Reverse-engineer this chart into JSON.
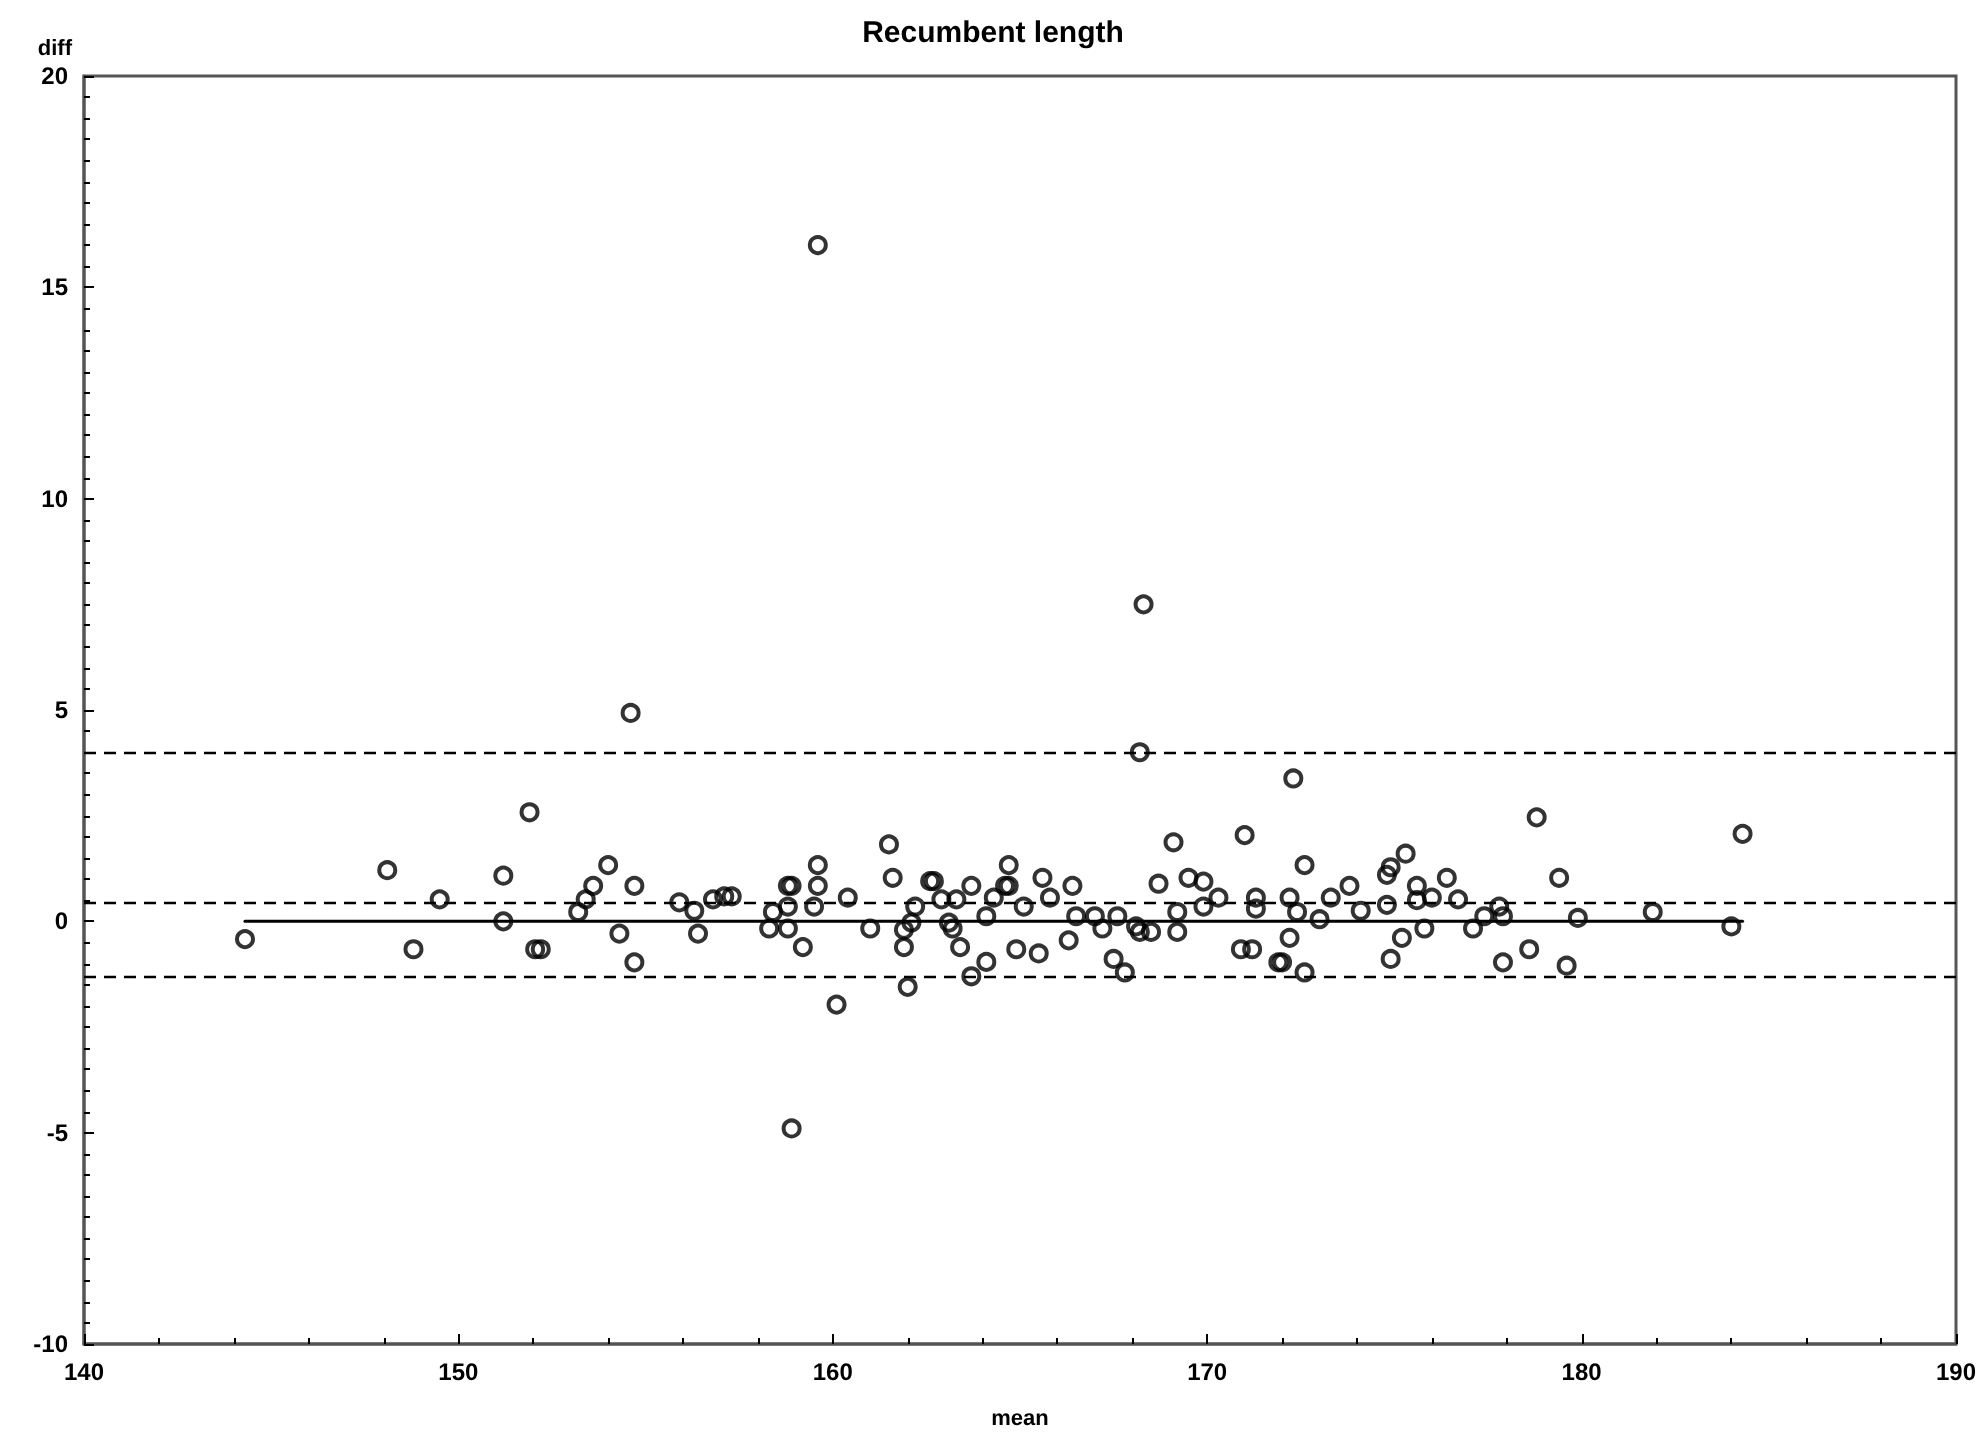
{
  "chart_data": {
    "type": "scatter",
    "title": "Recumbent length",
    "xlabel": "mean",
    "ylabel": "diff",
    "xlim": [
      140,
      190
    ],
    "xticks": [
      140,
      150,
      160,
      170,
      180,
      190
    ],
    "ylim": [
      -10,
      20
    ],
    "yticks": [
      -10,
      -5,
      0,
      5,
      10,
      15,
      20
    ],
    "grid": false,
    "marker": "circle",
    "series": [
      {
        "color": "#000000",
        "x": [
          144.3,
          148.1,
          148.8,
          149.5,
          151.2,
          151.2,
          151.9,
          152.05,
          152.2,
          154.6,
          153.2,
          153.4,
          153.6,
          154.0,
          154.3,
          154.7,
          154.7,
          155.9,
          156.3,
          156.4,
          156.8,
          157.1,
          157.3,
          158.4,
          158.3,
          158.8,
          158.8,
          158.9,
          158.8,
          159.5,
          159.6,
          159.2,
          159.6,
          158.9,
          160.1,
          160.4,
          161.0,
          161.5,
          161.6,
          161.9,
          162.0,
          161.9,
          162.2,
          162.1,
          162.6,
          162.7,
          162.9,
          163.1,
          163.2,
          163.3,
          163.4,
          163.7,
          163.7,
          164.1,
          164.1,
          164.3,
          164.6,
          164.7,
          164.7,
          164.9,
          165.1,
          165.5,
          165.6,
          165.8,
          166.3,
          166.4,
          166.5,
          167.0,
          167.2,
          167.5,
          167.6,
          167.8,
          168.1,
          168.2,
          168.5,
          168.2,
          168.7,
          169.1,
          169.2,
          169.2,
          169.5,
          169.9,
          169.9,
          170.3,
          171.0,
          170.9,
          171.2,
          171.3,
          171.3,
          171.9,
          172.3,
          172.2,
          172.4,
          172.2,
          172.0,
          172.6,
          172.6,
          173.0,
          173.3,
          173.8,
          174.1,
          174.8,
          174.9,
          175.3,
          174.8,
          175.2,
          174.9,
          175.6,
          175.6,
          176.0,
          175.8,
          176.4,
          176.7,
          177.1,
          177.4,
          177.8,
          177.9,
          177.9,
          178.6,
          178.8,
          179.4,
          179.6,
          179.9,
          181.9,
          184.0,
          184.3,
          159.6,
          168.3
        ],
        "values": [
          -0.42,
          1.21,
          -0.66,
          0.52,
          1.08,
          0.0,
          2.58,
          -0.66,
          -0.66,
          4.93,
          0.22,
          0.52,
          0.84,
          1.33,
          -0.29,
          0.84,
          -0.97,
          0.45,
          0.25,
          -0.29,
          0.52,
          0.59,
          0.59,
          0.22,
          -0.17,
          -0.17,
          0.84,
          0.84,
          0.35,
          0.35,
          0.84,
          -0.61,
          1.33,
          -4.9,
          -1.97,
          0.56,
          -0.17,
          1.82,
          1.03,
          -0.61,
          -1.55,
          -0.2,
          0.35,
          -0.03,
          0.95,
          0.95,
          0.52,
          -0.03,
          -0.17,
          0.52,
          -0.61,
          0.84,
          -1.3,
          0.12,
          -0.96,
          0.56,
          0.84,
          0.84,
          1.33,
          -0.66,
          0.35,
          -0.76,
          1.03,
          0.56,
          -0.45,
          0.84,
          0.12,
          0.12,
          -0.17,
          -0.89,
          0.12,
          -1.21,
          -0.12,
          -0.25,
          -0.25,
          4.0,
          0.89,
          1.87,
          0.22,
          -0.25,
          1.03,
          0.94,
          0.35,
          0.56,
          2.04,
          -0.66,
          -0.66,
          0.56,
          0.3,
          -0.97,
          3.38,
          0.56,
          0.22,
          -0.39,
          -0.97,
          -1.21,
          1.33,
          0.05,
          0.56,
          0.84,
          0.25,
          1.1,
          1.28,
          1.6,
          0.39,
          -0.39,
          -0.89,
          0.84,
          0.5,
          0.56,
          -0.17,
          1.03,
          0.52,
          -0.17,
          0.12,
          0.35,
          0.12,
          -0.97,
          -0.66,
          2.46,
          1.03,
          -1.05,
          0.08,
          0.22,
          -0.12,
          2.07,
          16.0,
          7.5
        ]
      },
      {
        "type": "line",
        "color": "#000000",
        "x": [
          144.3,
          184.3
        ],
        "values": [
          0,
          0
        ],
        "marker": "none",
        "line_style": "solid"
      }
    ],
    "ref_lines": [
      {
        "axis": "y",
        "value": 4.0,
        "color": "#000000",
        "line_style": "dashed"
      },
      {
        "axis": "y",
        "value": 0.45,
        "color": "#000000",
        "line_style": "dashed"
      },
      {
        "axis": "y",
        "value": -1.3,
        "color": "#000000",
        "line_style": "dashed"
      }
    ]
  }
}
